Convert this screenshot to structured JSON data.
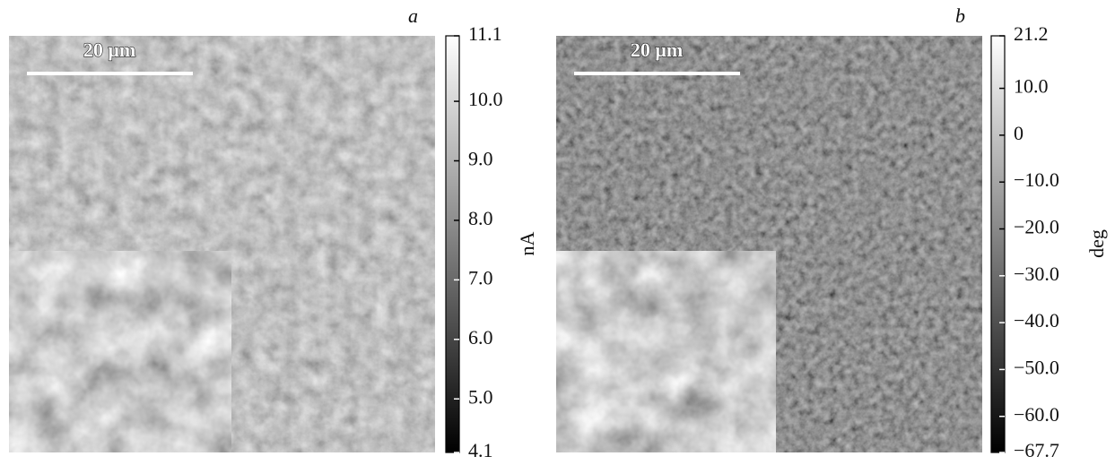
{
  "chart_data": [
    {
      "type": "image",
      "panel_label": "a",
      "scale_bar_label": "20 μm",
      "ylabel": "nA",
      "ylim": [
        4.1,
        11.1
      ],
      "yticks": [
        {
          "value": 4.1,
          "label": "4.1"
        },
        {
          "value": 5,
          "label": "5.0"
        },
        {
          "value": 6,
          "label": "6.0"
        },
        {
          "value": 7,
          "label": "7.0"
        },
        {
          "value": 8,
          "label": "8.0"
        },
        {
          "value": 9,
          "label": "9.0"
        },
        {
          "value": 10,
          "label": "10.0"
        },
        {
          "value": 11.1,
          "label": "11.1"
        }
      ]
    },
    {
      "type": "image",
      "panel_label": "b",
      "scale_bar_label": "20 μm",
      "ylabel": "deg",
      "ylim": [
        -67.7,
        21.2
      ],
      "yticks": [
        {
          "value": -67.7,
          "label": "−67.7"
        },
        {
          "value": -60,
          "label": "−60.0"
        },
        {
          "value": -50,
          "label": "−50.0"
        },
        {
          "value": -40,
          "label": "−40.0"
        },
        {
          "value": -30,
          "label": "−30.0"
        },
        {
          "value": -20,
          "label": "−20.0"
        },
        {
          "value": -10,
          "label": "−10.0"
        },
        0,
        {
          "value": 10,
          "label": "10.0"
        },
        {
          "value": 21.2,
          "label": "21.2"
        }
      ]
    }
  ]
}
